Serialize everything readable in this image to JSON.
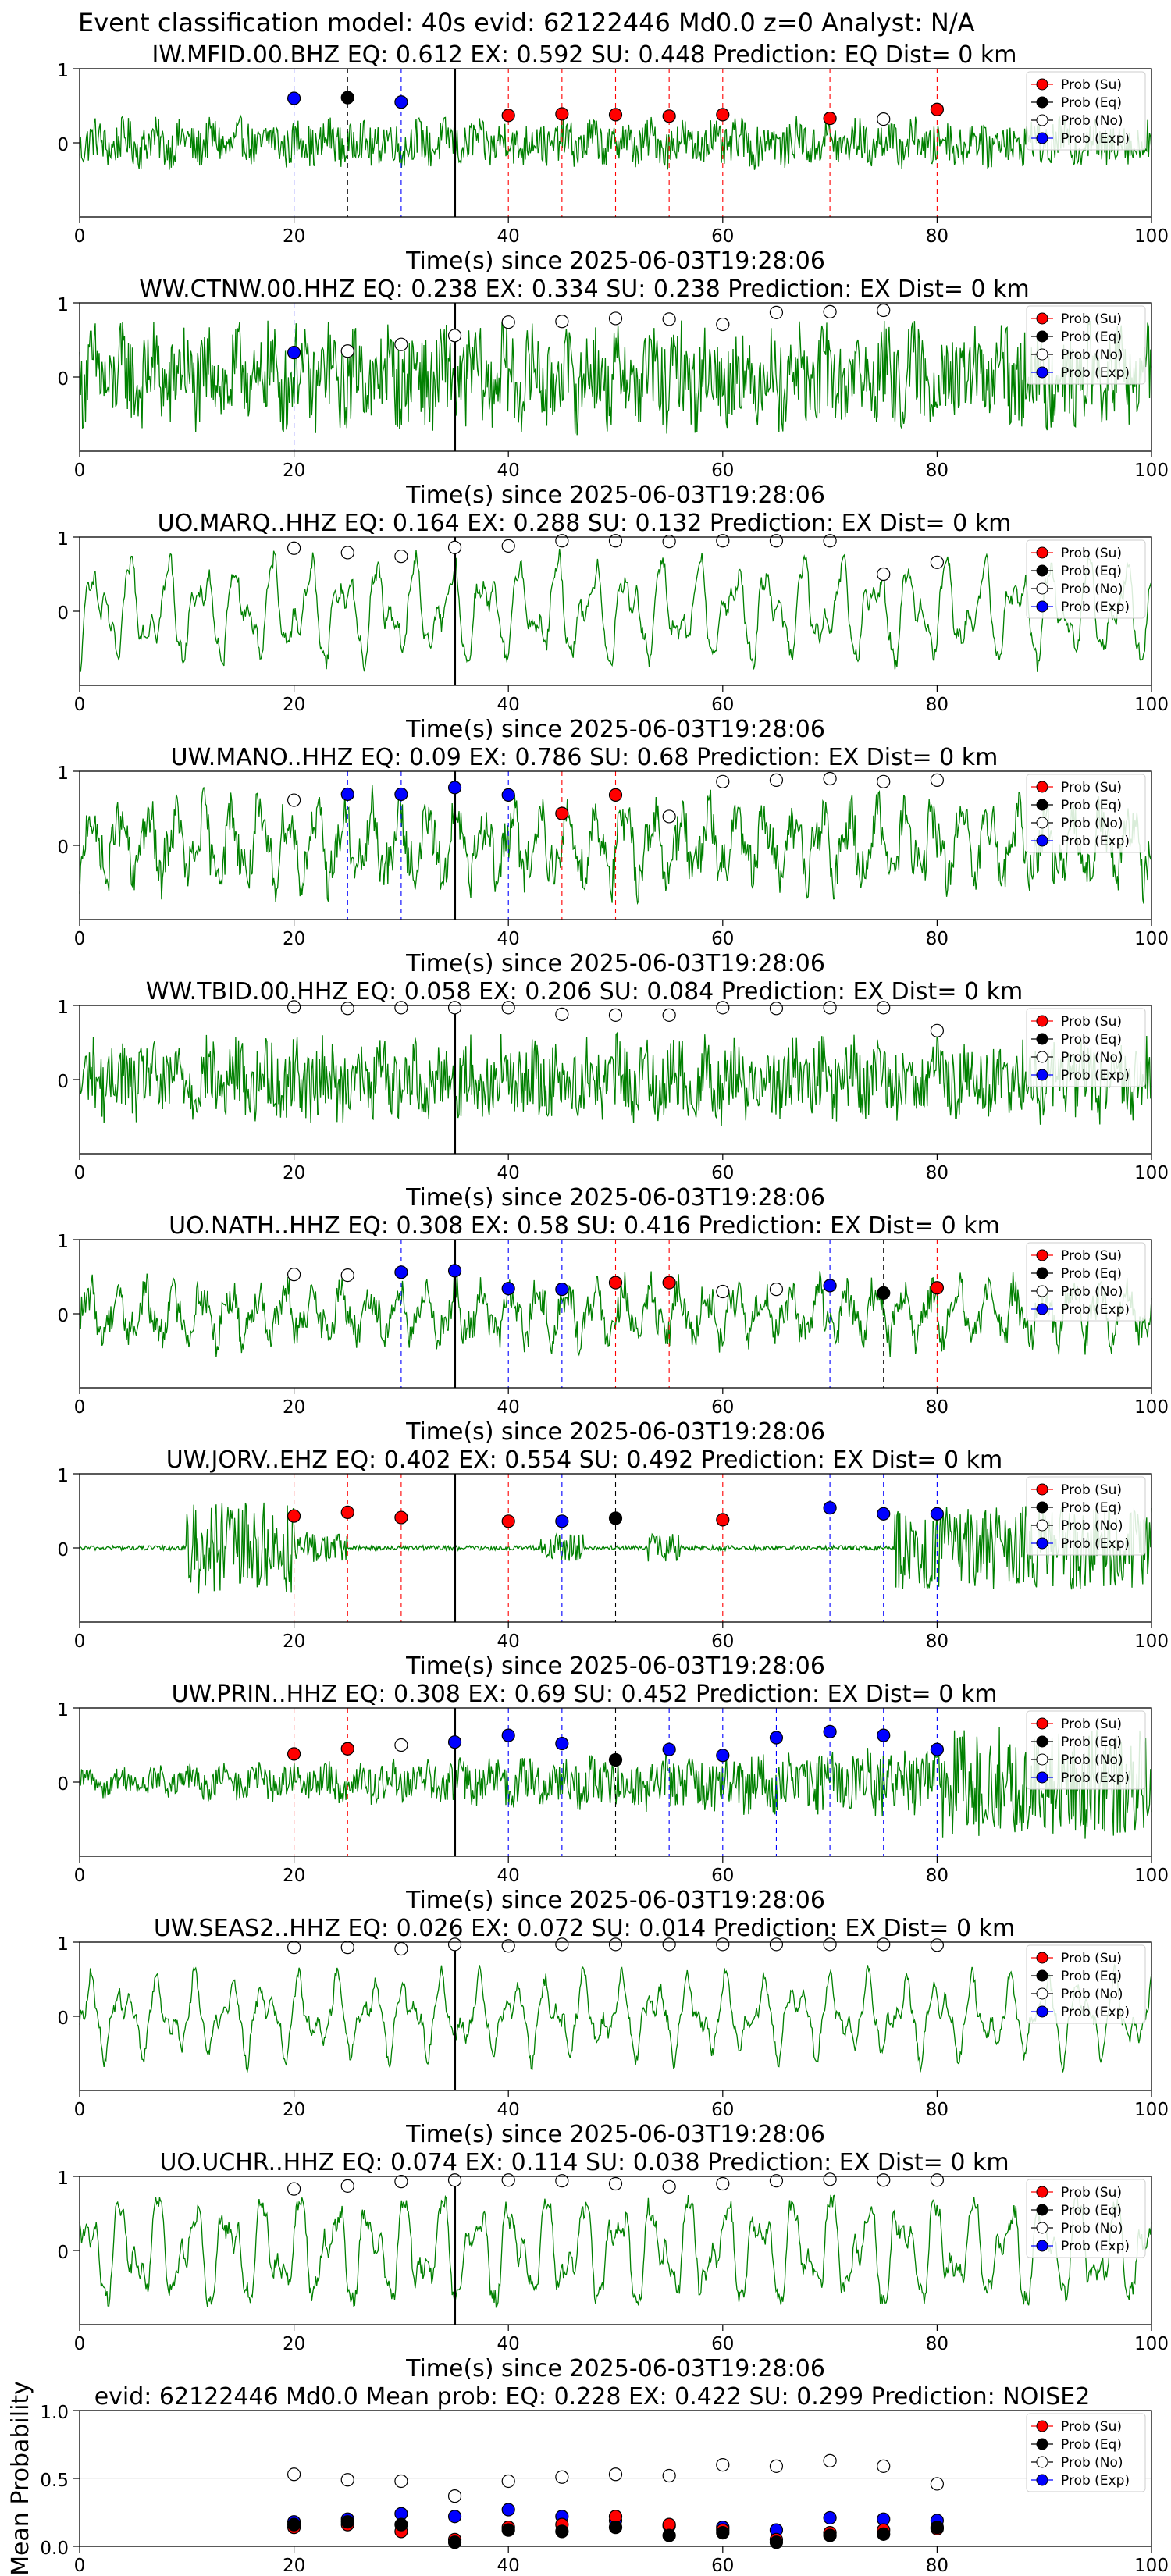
{
  "header": {
    "title": "Event classification model: 40s evid: 62122446 Md0.0 z=0 Analyst: N/A"
  },
  "legend": [
    "Prob (Su)",
    "Prob (Eq)",
    "Prob (No)",
    "Prob (Exp)"
  ],
  "colors": {
    "su": "#ff0000",
    "eq": "#000000",
    "no": "#ffffff",
    "exp": "#0000ff",
    "waveform": "#008000",
    "event_line": "#000000"
  },
  "chart_data": [
    {
      "type": "line",
      "title": "IW.MFID.00.BHZ   EQ: 0.612  EX: 0.592  SU: 0.448   Prediction: EQ    Dist= 0 km",
      "xlabel": "Time(s) since 2025-06-03T19:28:06",
      "xlim": [
        0,
        100
      ],
      "ylim": [
        -1,
        1
      ],
      "xticks": [
        "0",
        "20",
        "40",
        "60",
        "80",
        "100"
      ],
      "yticks": [
        "1",
        "0"
      ],
      "event_time": 35,
      "waveform_style": "noisy",
      "amplitude": 0.35,
      "windows": [
        20,
        25,
        30,
        40,
        45,
        50,
        55,
        60,
        70,
        75,
        80
      ],
      "probabilities": [
        {
          "cls": "exp",
          "y": 0.6
        },
        {
          "cls": "eq",
          "y": 0.61
        },
        {
          "cls": "exp",
          "y": 0.55
        },
        {
          "cls": "su",
          "y": 0.37
        },
        {
          "cls": "su",
          "y": 0.39
        },
        {
          "cls": "su",
          "y": 0.38
        },
        {
          "cls": "su",
          "y": 0.36
        },
        {
          "cls": "su",
          "y": 0.38
        },
        {
          "cls": "su",
          "y": 0.33
        },
        {
          "cls": "no",
          "y": 0.32
        },
        {
          "cls": "su",
          "y": 0.45
        }
      ]
    },
    {
      "type": "line",
      "title": "WW.CTNW.00.HHZ   EQ: 0.238  EX: 0.334  SU: 0.238   Prediction: EX    Dist= 0 km",
      "xlabel": "Time(s) since 2025-06-03T19:28:06",
      "xlim": [
        0,
        100
      ],
      "ylim": [
        -1,
        1
      ],
      "xticks": [
        "0",
        "20",
        "40",
        "60",
        "80",
        "100"
      ],
      "yticks": [
        "1",
        "0"
      ],
      "event_time": 35,
      "waveform_style": "noisy",
      "amplitude": 0.75,
      "windows": [
        20,
        25,
        30,
        35,
        40,
        45,
        50,
        55,
        60,
        65,
        70,
        75
      ],
      "probabilities": [
        {
          "cls": "exp",
          "y": 0.33
        },
        {
          "cls": "no",
          "y": 0.35
        },
        {
          "cls": "no",
          "y": 0.44
        },
        {
          "cls": "no",
          "y": 0.56
        },
        {
          "cls": "no",
          "y": 0.74
        },
        {
          "cls": "no",
          "y": 0.75
        },
        {
          "cls": "no",
          "y": 0.79
        },
        {
          "cls": "no",
          "y": 0.78
        },
        {
          "cls": "no",
          "y": 0.71
        },
        {
          "cls": "no",
          "y": 0.87
        },
        {
          "cls": "no",
          "y": 0.88
        },
        {
          "cls": "no",
          "y": 0.9
        }
      ]
    },
    {
      "type": "line",
      "title": "UO.MARQ..HHZ   EQ: 0.164  EX: 0.288  SU: 0.132   Prediction: EX    Dist= 0 km",
      "xlabel": "Time(s) since 2025-06-03T19:28:06",
      "xlim": [
        0,
        100
      ],
      "ylim": [
        -1,
        1
      ],
      "xticks": [
        "0",
        "20",
        "40",
        "60",
        "80",
        "100"
      ],
      "yticks": [
        "1",
        "0"
      ],
      "event_time": 35,
      "waveform_style": "smooth",
      "amplitude": 0.8,
      "windows": [
        20,
        25,
        30,
        35,
        40,
        45,
        50,
        55,
        60,
        65,
        70,
        75,
        80
      ],
      "probabilities": [
        {
          "cls": "no",
          "y": 0.85
        },
        {
          "cls": "no",
          "y": 0.79
        },
        {
          "cls": "no",
          "y": 0.74
        },
        {
          "cls": "no",
          "y": 0.86
        },
        {
          "cls": "no",
          "y": 0.88
        },
        {
          "cls": "no",
          "y": 0.95
        },
        {
          "cls": "no",
          "y": 0.95
        },
        {
          "cls": "no",
          "y": 0.94
        },
        {
          "cls": "no",
          "y": 0.95
        },
        {
          "cls": "no",
          "y": 0.95
        },
        {
          "cls": "no",
          "y": 0.95
        },
        {
          "cls": "no",
          "y": 0.5
        },
        {
          "cls": "no",
          "y": 0.66
        }
      ]
    },
    {
      "type": "line",
      "title": "UW.MANO..HHZ   EQ: 0.09  EX: 0.786  SU: 0.68   Prediction: EX    Dist= 0 km",
      "xlabel": "Time(s) since 2025-06-03T19:28:06",
      "xlim": [
        0,
        100
      ],
      "ylim": [
        -1,
        1
      ],
      "xticks": [
        "0",
        "20",
        "40",
        "60",
        "80",
        "100"
      ],
      "yticks": [
        "1",
        "0"
      ],
      "event_time": 35,
      "waveform_style": "mixed",
      "amplitude": 0.75,
      "windows": [
        20,
        25,
        30,
        35,
        40,
        45,
        50,
        55,
        60,
        65,
        70,
        75,
        80
      ],
      "probabilities": [
        {
          "cls": "no",
          "y": 0.61
        },
        {
          "cls": "exp",
          "y": 0.69
        },
        {
          "cls": "exp",
          "y": 0.69
        },
        {
          "cls": "exp",
          "y": 0.78
        },
        {
          "cls": "exp",
          "y": 0.68
        },
        {
          "cls": "su",
          "y": 0.43
        },
        {
          "cls": "su",
          "y": 0.68
        },
        {
          "cls": "no",
          "y": 0.39
        },
        {
          "cls": "no",
          "y": 0.86
        },
        {
          "cls": "no",
          "y": 0.88
        },
        {
          "cls": "no",
          "y": 0.9
        },
        {
          "cls": "no",
          "y": 0.86
        },
        {
          "cls": "no",
          "y": 0.88
        }
      ]
    },
    {
      "type": "line",
      "title": "WW.TBID.00.HHZ   EQ: 0.058  EX: 0.206  SU: 0.084   Prediction: EX    Dist= 0 km",
      "xlabel": "Time(s) since 2025-06-03T19:28:06",
      "xlim": [
        0,
        100
      ],
      "ylim": [
        -1,
        1
      ],
      "xticks": [
        "0",
        "20",
        "40",
        "60",
        "80",
        "100"
      ],
      "yticks": [
        "1",
        "0"
      ],
      "event_time": 35,
      "waveform_style": "noisy",
      "amplitude": 0.6,
      "windows": [
        20,
        25,
        30,
        35,
        40,
        45,
        50,
        55,
        60,
        65,
        70,
        75,
        80
      ],
      "probabilities": [
        {
          "cls": "no",
          "y": 0.98
        },
        {
          "cls": "no",
          "y": 0.96
        },
        {
          "cls": "no",
          "y": 0.97
        },
        {
          "cls": "no",
          "y": 0.97
        },
        {
          "cls": "no",
          "y": 0.97
        },
        {
          "cls": "no",
          "y": 0.88
        },
        {
          "cls": "no",
          "y": 0.87
        },
        {
          "cls": "no",
          "y": 0.87
        },
        {
          "cls": "no",
          "y": 0.97
        },
        {
          "cls": "no",
          "y": 0.96
        },
        {
          "cls": "no",
          "y": 0.97
        },
        {
          "cls": "no",
          "y": 0.97
        },
        {
          "cls": "no",
          "y": 0.66
        }
      ]
    },
    {
      "type": "line",
      "title": "UO.NATH..HHZ   EQ: 0.308  EX: 0.58  SU: 0.416   Prediction: EX    Dist= 0 km",
      "xlabel": "Time(s) since 2025-06-03T19:28:06",
      "xlim": [
        0,
        100
      ],
      "ylim": [
        -1,
        1
      ],
      "xticks": [
        "0",
        "20",
        "40",
        "60",
        "80",
        "100"
      ],
      "yticks": [
        "1",
        "0"
      ],
      "event_time": 35,
      "waveform_style": "mixed",
      "amplitude": 0.55,
      "windows": [
        20,
        25,
        30,
        35,
        40,
        45,
        50,
        55,
        60,
        65,
        70,
        75,
        80
      ],
      "probabilities": [
        {
          "cls": "no",
          "y": 0.53
        },
        {
          "cls": "no",
          "y": 0.52
        },
        {
          "cls": "exp",
          "y": 0.56
        },
        {
          "cls": "exp",
          "y": 0.58
        },
        {
          "cls": "exp",
          "y": 0.34
        },
        {
          "cls": "exp",
          "y": 0.33
        },
        {
          "cls": "su",
          "y": 0.42
        },
        {
          "cls": "su",
          "y": 0.42
        },
        {
          "cls": "no",
          "y": 0.3
        },
        {
          "cls": "no",
          "y": 0.33
        },
        {
          "cls": "exp",
          "y": 0.38
        },
        {
          "cls": "eq",
          "y": 0.28
        },
        {
          "cls": "su",
          "y": 0.35
        }
      ]
    },
    {
      "type": "line",
      "title": "UW.JORV..EHZ   EQ: 0.402  EX: 0.554  SU: 0.492   Prediction: EX    Dist= 0 km",
      "xlabel": "Time(s) since 2025-06-03T19:28:06",
      "xlim": [
        0,
        100
      ],
      "ylim": [
        -1,
        1
      ],
      "xticks": [
        "0",
        "20",
        "40",
        "60",
        "80",
        "100"
      ],
      "yticks": [
        "1",
        "0"
      ],
      "event_time": 35,
      "waveform_style": "burst",
      "amplitude": 0.7,
      "windows": [
        20,
        25,
        30,
        40,
        45,
        50,
        60,
        70,
        75,
        80
      ],
      "probabilities": [
        {
          "cls": "su",
          "y": 0.43
        },
        {
          "cls": "su",
          "y": 0.48
        },
        {
          "cls": "su",
          "y": 0.41
        },
        {
          "cls": "su",
          "y": 0.36
        },
        {
          "cls": "exp",
          "y": 0.36
        },
        {
          "cls": "eq",
          "y": 0.4
        },
        {
          "cls": "su",
          "y": 0.38
        },
        {
          "cls": "exp",
          "y": 0.54
        },
        {
          "cls": "exp",
          "y": 0.46
        },
        {
          "cls": "exp",
          "y": 0.46
        }
      ]
    },
    {
      "type": "line",
      "title": "UW.PRIN..HHZ   EQ: 0.308  EX: 0.69  SU: 0.452   Prediction: EX    Dist= 0 km",
      "xlabel": "Time(s) since 2025-06-03T19:28:06",
      "xlim": [
        0,
        100
      ],
      "ylim": [
        -1,
        1
      ],
      "xticks": [
        "0",
        "20",
        "40",
        "60",
        "80",
        "100"
      ],
      "yticks": [
        "1",
        "0"
      ],
      "event_time": 35,
      "waveform_style": "growing",
      "amplitude": 0.75,
      "windows": [
        20,
        25,
        30,
        35,
        40,
        45,
        50,
        55,
        60,
        65,
        70,
        75,
        80
      ],
      "probabilities": [
        {
          "cls": "su",
          "y": 0.38
        },
        {
          "cls": "su",
          "y": 0.45
        },
        {
          "cls": "no",
          "y": 0.5
        },
        {
          "cls": "exp",
          "y": 0.54
        },
        {
          "cls": "exp",
          "y": 0.63
        },
        {
          "cls": "exp",
          "y": 0.52
        },
        {
          "cls": "eq",
          "y": 0.3
        },
        {
          "cls": "exp",
          "y": 0.44
        },
        {
          "cls": "exp",
          "y": 0.36
        },
        {
          "cls": "exp",
          "y": 0.6
        },
        {
          "cls": "exp",
          "y": 0.68
        },
        {
          "cls": "exp",
          "y": 0.63
        },
        {
          "cls": "exp",
          "y": 0.44
        }
      ]
    },
    {
      "type": "line",
      "title": "UW.SEAS2..HHZ   EQ: 0.026  EX: 0.072  SU: 0.014   Prediction: EX    Dist= 0 km",
      "xlabel": "Time(s) since 2025-06-03T19:28:06",
      "xlim": [
        0,
        100
      ],
      "ylim": [
        -1,
        1
      ],
      "xticks": [
        "0",
        "20",
        "40",
        "60",
        "80",
        "100"
      ],
      "yticks": [
        "1",
        "0"
      ],
      "event_time": 35,
      "waveform_style": "smooth",
      "amplitude": 0.65,
      "windows": [
        20,
        25,
        30,
        35,
        40,
        45,
        50,
        55,
        60,
        65,
        70,
        75,
        80
      ],
      "probabilities": [
        {
          "cls": "no",
          "y": 0.93
        },
        {
          "cls": "no",
          "y": 0.93
        },
        {
          "cls": "no",
          "y": 0.91
        },
        {
          "cls": "no",
          "y": 0.97
        },
        {
          "cls": "no",
          "y": 0.95
        },
        {
          "cls": "no",
          "y": 0.97
        },
        {
          "cls": "no",
          "y": 0.97
        },
        {
          "cls": "no",
          "y": 0.97
        },
        {
          "cls": "no",
          "y": 0.97
        },
        {
          "cls": "no",
          "y": 0.97
        },
        {
          "cls": "no",
          "y": 0.97
        },
        {
          "cls": "no",
          "y": 0.97
        },
        {
          "cls": "no",
          "y": 0.96
        }
      ]
    },
    {
      "type": "line",
      "title": "UO.UCHR..HHZ   EQ: 0.074  EX: 0.114  SU: 0.038   Prediction: EX    Dist= 0 km",
      "xlabel": "Time(s) since 2025-06-03T19:28:06",
      "xlim": [
        0,
        100
      ],
      "ylim": [
        -1,
        1
      ],
      "xticks": [
        "0",
        "20",
        "40",
        "60",
        "80",
        "100"
      ],
      "yticks": [
        "1",
        "0"
      ],
      "event_time": 35,
      "waveform_style": "smooth",
      "amplitude": 0.85,
      "windows": [
        20,
        25,
        30,
        35,
        40,
        45,
        50,
        55,
        60,
        65,
        70,
        75,
        80
      ],
      "probabilities": [
        {
          "cls": "no",
          "y": 0.83
        },
        {
          "cls": "no",
          "y": 0.87
        },
        {
          "cls": "no",
          "y": 0.93
        },
        {
          "cls": "no",
          "y": 0.95
        },
        {
          "cls": "no",
          "y": 0.95
        },
        {
          "cls": "no",
          "y": 0.94
        },
        {
          "cls": "no",
          "y": 0.9
        },
        {
          "cls": "no",
          "y": 0.86
        },
        {
          "cls": "no",
          "y": 0.9
        },
        {
          "cls": "no",
          "y": 0.94
        },
        {
          "cls": "no",
          "y": 0.96
        },
        {
          "cls": "no",
          "y": 0.95
        },
        {
          "cls": "no",
          "y": 0.95
        }
      ]
    },
    {
      "type": "scatter",
      "title": "evid: 62122446  Md0.0   Mean prob:   EQ: 0.228  EX: 0.422  SU: 0.299   Prediction: NOISE2",
      "xlabel": "",
      "ylabel": "Mean Probability",
      "xlim": [
        0,
        100
      ],
      "ylim": [
        0,
        1
      ],
      "xticks": [
        "0",
        "20",
        "40",
        "60",
        "80",
        "100"
      ],
      "yticks": [
        "1.0",
        "0.5",
        "0.0"
      ],
      "grid": true,
      "x": [
        20,
        25,
        30,
        35,
        40,
        45,
        50,
        55,
        60,
        65,
        70,
        75,
        80
      ],
      "series": [
        {
          "cls": "no",
          "values": [
            0.53,
            0.49,
            0.48,
            0.37,
            0.48,
            0.51,
            0.53,
            0.52,
            0.6,
            0.59,
            0.63,
            0.59,
            0.46
          ]
        },
        {
          "cls": "exp",
          "values": [
            0.18,
            0.2,
            0.24,
            0.22,
            0.27,
            0.22,
            0.19,
            0.15,
            0.14,
            0.12,
            0.21,
            0.2,
            0.19
          ]
        },
        {
          "cls": "su",
          "values": [
            0.14,
            0.16,
            0.11,
            0.05,
            0.14,
            0.16,
            0.22,
            0.16,
            0.12,
            0.05,
            0.1,
            0.12,
            0.13
          ]
        },
        {
          "cls": "eq",
          "values": [
            0.16,
            0.18,
            0.16,
            0.03,
            0.12,
            0.11,
            0.14,
            0.08,
            0.1,
            0.03,
            0.08,
            0.09,
            0.14
          ]
        }
      ]
    }
  ]
}
